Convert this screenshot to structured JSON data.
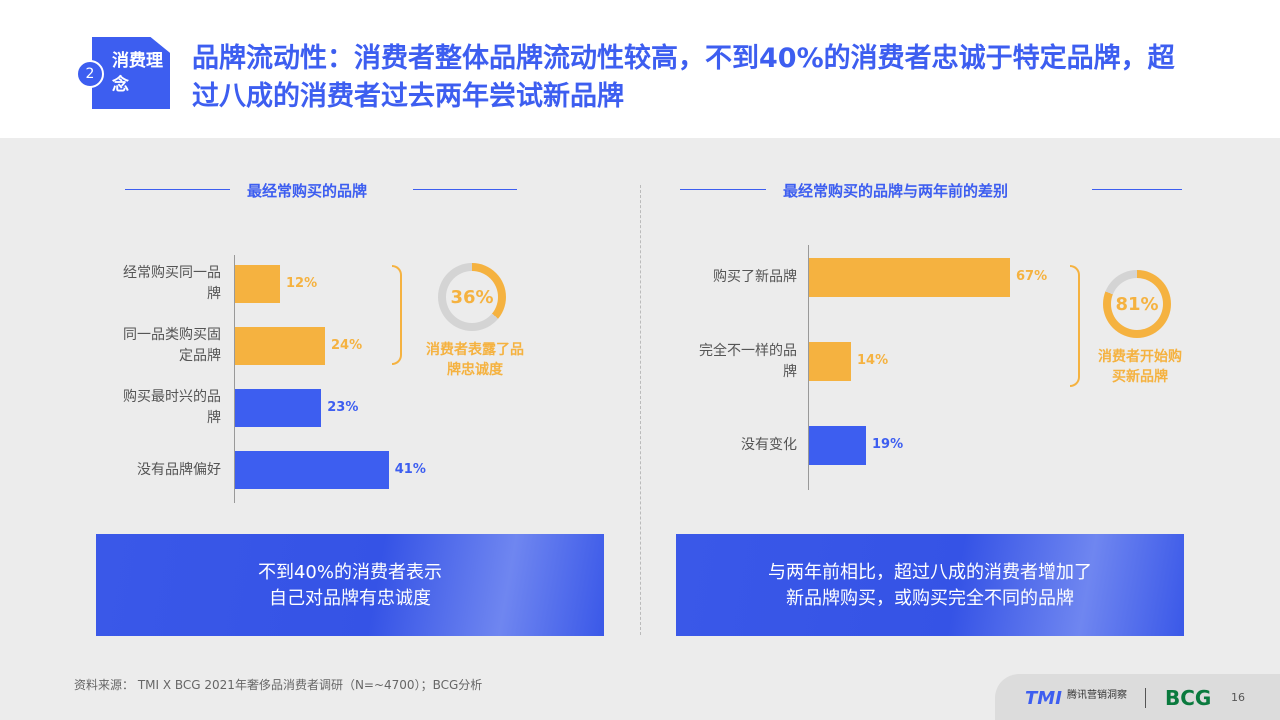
{
  "header": {
    "section_number": "2",
    "section_label": "消费理念",
    "title": "品牌流动性：消费者整体品牌流动性较高，不到40%的消费者忠诚于特定品牌，超过八成的消费者过去两年尝试新品牌"
  },
  "colors": {
    "accent": "#3d5ef0",
    "highlight": "#f5b240"
  },
  "chart_data": [
    {
      "type": "bar",
      "orientation": "horizontal",
      "title": "最经常购买的品牌",
      "categories": [
        "经常购买同一品牌",
        "同一品类购买固定品牌",
        "购买最时兴的品牌",
        "没有品牌偏好"
      ],
      "values": [
        12,
        24,
        23,
        41
      ],
      "labels": [
        "12%",
        "24%",
        "23%",
        "41%"
      ],
      "bar_colors": [
        "#f5b240",
        "#f5b240",
        "#3d5ef0",
        "#3d5ef0"
      ],
      "summary": {
        "value": 36,
        "label": "36%",
        "text": "消费者表露了品牌忠诚度"
      }
    },
    {
      "type": "bar",
      "orientation": "horizontal",
      "title": "最经常购买的品牌与两年前的差别",
      "categories": [
        "购买了新品牌",
        "完全不一样的品牌",
        "没有变化"
      ],
      "values": [
        67,
        14,
        19
      ],
      "labels": [
        "67%",
        "14%",
        "19%"
      ],
      "bar_colors": [
        "#f5b240",
        "#f5b240",
        "#3d5ef0"
      ],
      "summary": {
        "value": 81,
        "label": "81%",
        "text": "消费者开始购买新品牌"
      }
    }
  ],
  "banners": [
    "不到40%的消费者表示\n自己对品牌有忠诚度",
    "与两年前相比，超过八成的消费者增加了\n新品牌购买，或购买完全不同的品牌"
  ],
  "footer": {
    "source": "资料来源： TMI X BCG 2021年奢侈品消费者调研（N=~4700）；BCG分析",
    "logo_tmi": "TMI",
    "logo_tmi_text": "腾讯营销洞察",
    "logo_bcg": "BCG",
    "page": "16"
  }
}
